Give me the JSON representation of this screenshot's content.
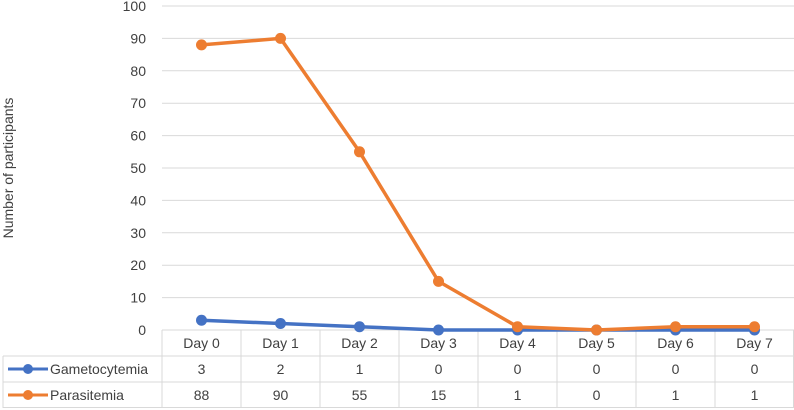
{
  "chart_data": {
    "type": "line",
    "title": "",
    "xlabel": "",
    "ylabel": "Number of participants",
    "ylim": [
      0,
      100
    ],
    "y_ticks": [
      0,
      10,
      20,
      30,
      40,
      50,
      60,
      70,
      80,
      90,
      100
    ],
    "grid": true,
    "legend": "data-table-left",
    "categories": [
      "Day 0",
      "Day 1",
      "Day 2",
      "Day 3",
      "Day 4",
      "Day 5",
      "Day 6",
      "Day 7"
    ],
    "series": [
      {
        "name": "Gametocytemia",
        "color": "#4472C4",
        "values": [
          3,
          2,
          1,
          0,
          0,
          0,
          0,
          0
        ]
      },
      {
        "name": "Parasitemia",
        "color": "#ED7D31",
        "values": [
          88,
          90,
          55,
          15,
          1,
          0,
          1,
          1
        ]
      }
    ]
  }
}
